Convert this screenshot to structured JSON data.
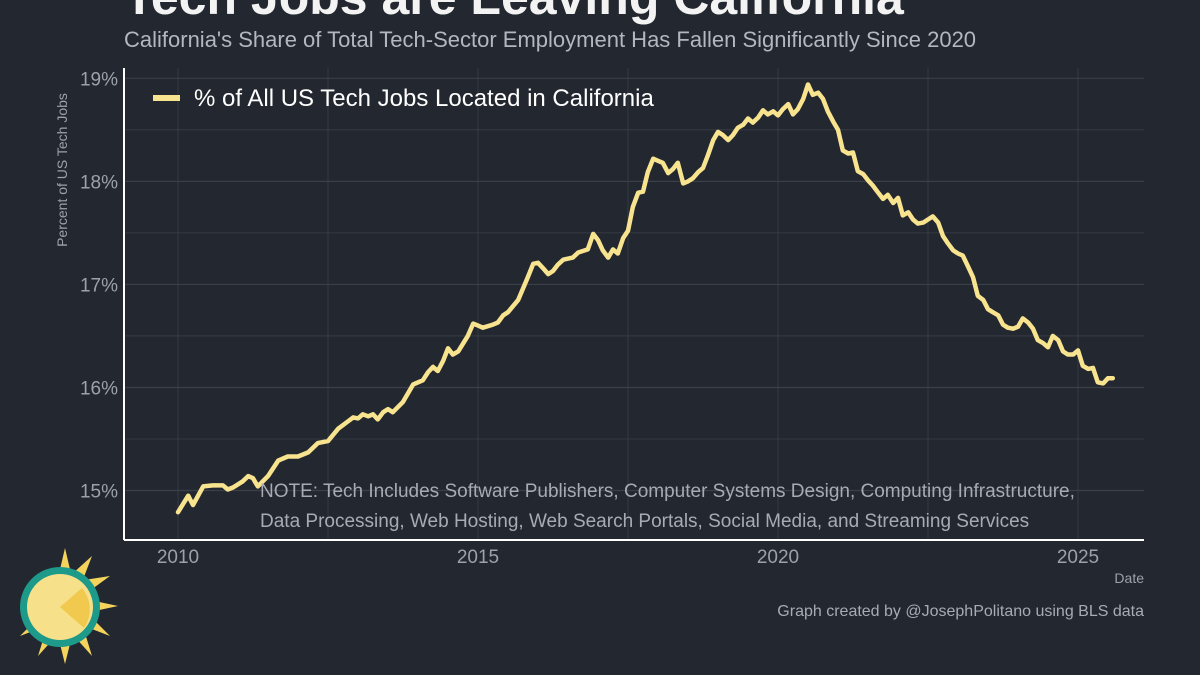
{
  "title": "Tech Jobs are Leaving California",
  "subtitle": "California's Share of Total Tech-Sector Employment Has Fallen Significantly Since 2020",
  "note": {
    "line1": "NOTE: Tech Includes Software Publishers, Computer Systems Design, Computing Infrastructure,",
    "line2": "Data Processing, Web Hosting, Web Search Portals, Social Media, and Streaming Services"
  },
  "credit": "Graph created by @JosephPolitano using BLS data",
  "logo_icon": "sun-icon",
  "colors": {
    "background": "#23272f",
    "line": "#f8e38f",
    "grid": "#3a3f48",
    "axis": "#ffffff"
  },
  "chart_data": {
    "type": "line",
    "xlabel": "Date",
    "ylabel": "Percent of US Tech Jobs",
    "xlim": [
      2009.1,
      2026.1
    ],
    "ylim": [
      14.52,
      19.1
    ],
    "x_ticks": [
      2010,
      2015,
      2020,
      2025
    ],
    "y_ticks": [
      15,
      16,
      17,
      18,
      19
    ],
    "y_tick_labels": [
      "15%",
      "16%",
      "17%",
      "18%",
      "19%"
    ],
    "grid": true,
    "legend_position": "top-left",
    "series": [
      {
        "name": "% of All US Tech Jobs Located in California",
        "color": "#f8e38f",
        "points": [
          [
            2010.0,
            14.79
          ],
          [
            2010.17,
            14.95
          ],
          [
            2010.25,
            14.86
          ],
          [
            2010.42,
            15.04
          ],
          [
            2010.58,
            15.05
          ],
          [
            2010.75,
            15.05
          ],
          [
            2010.83,
            15.01
          ],
          [
            2010.92,
            15.03
          ],
          [
            2011.08,
            15.09
          ],
          [
            2011.17,
            15.14
          ],
          [
            2011.25,
            15.12
          ],
          [
            2011.33,
            15.04
          ],
          [
            2011.5,
            15.14
          ],
          [
            2011.67,
            15.29
          ],
          [
            2011.83,
            15.33
          ],
          [
            2012.0,
            15.33
          ],
          [
            2012.17,
            15.37
          ],
          [
            2012.33,
            15.46
          ],
          [
            2012.5,
            15.48
          ],
          [
            2012.67,
            15.6
          ],
          [
            2012.83,
            15.67
          ],
          [
            2012.92,
            15.71
          ],
          [
            2013.0,
            15.7
          ],
          [
            2013.08,
            15.74
          ],
          [
            2013.17,
            15.72
          ],
          [
            2013.25,
            15.74
          ],
          [
            2013.33,
            15.69
          ],
          [
            2013.42,
            15.76
          ],
          [
            2013.5,
            15.79
          ],
          [
            2013.58,
            15.76
          ],
          [
            2013.75,
            15.86
          ],
          [
            2013.92,
            16.03
          ],
          [
            2014.08,
            16.07
          ],
          [
            2014.17,
            16.15
          ],
          [
            2014.25,
            16.2
          ],
          [
            2014.33,
            16.16
          ],
          [
            2014.42,
            16.26
          ],
          [
            2014.5,
            16.38
          ],
          [
            2014.58,
            16.32
          ],
          [
            2014.67,
            16.35
          ],
          [
            2014.83,
            16.5
          ],
          [
            2014.92,
            16.62
          ],
          [
            2015.0,
            16.6
          ],
          [
            2015.08,
            16.58
          ],
          [
            2015.25,
            16.61
          ],
          [
            2015.33,
            16.63
          ],
          [
            2015.42,
            16.7
          ],
          [
            2015.5,
            16.73
          ],
          [
            2015.67,
            16.85
          ],
          [
            2015.83,
            17.07
          ],
          [
            2015.92,
            17.2
          ],
          [
            2016.0,
            17.21
          ],
          [
            2016.08,
            17.16
          ],
          [
            2016.17,
            17.1
          ],
          [
            2016.25,
            17.13
          ],
          [
            2016.33,
            17.19
          ],
          [
            2016.42,
            17.24
          ],
          [
            2016.58,
            17.26
          ],
          [
            2016.67,
            17.31
          ],
          [
            2016.83,
            17.34
          ],
          [
            2016.92,
            17.49
          ],
          [
            2017.0,
            17.43
          ],
          [
            2017.08,
            17.33
          ],
          [
            2017.17,
            17.26
          ],
          [
            2017.25,
            17.34
          ],
          [
            2017.33,
            17.3
          ],
          [
            2017.42,
            17.45
          ],
          [
            2017.5,
            17.52
          ],
          [
            2017.58,
            17.75
          ],
          [
            2017.67,
            17.89
          ],
          [
            2017.75,
            17.9
          ],
          [
            2017.83,
            18.09
          ],
          [
            2017.92,
            18.22
          ],
          [
            2018.0,
            18.2
          ],
          [
            2018.08,
            18.18
          ],
          [
            2018.17,
            18.08
          ],
          [
            2018.25,
            18.12
          ],
          [
            2018.33,
            18.18
          ],
          [
            2018.42,
            17.98
          ],
          [
            2018.5,
            18.0
          ],
          [
            2018.58,
            18.03
          ],
          [
            2018.67,
            18.09
          ],
          [
            2018.75,
            18.13
          ],
          [
            2018.83,
            18.25
          ],
          [
            2018.92,
            18.4
          ],
          [
            2019.0,
            18.48
          ],
          [
            2019.08,
            18.45
          ],
          [
            2019.17,
            18.4
          ],
          [
            2019.25,
            18.45
          ],
          [
            2019.33,
            18.52
          ],
          [
            2019.42,
            18.55
          ],
          [
            2019.5,
            18.61
          ],
          [
            2019.58,
            18.57
          ],
          [
            2019.67,
            18.62
          ],
          [
            2019.75,
            18.69
          ],
          [
            2019.83,
            18.65
          ],
          [
            2019.92,
            18.68
          ],
          [
            2020.0,
            18.64
          ],
          [
            2020.08,
            18.7
          ],
          [
            2020.17,
            18.75
          ],
          [
            2020.25,
            18.65
          ],
          [
            2020.33,
            18.7
          ],
          [
            2020.42,
            18.8
          ],
          [
            2020.5,
            18.94
          ],
          [
            2020.58,
            18.84
          ],
          [
            2020.67,
            18.86
          ],
          [
            2020.75,
            18.8
          ],
          [
            2020.83,
            18.68
          ],
          [
            2020.92,
            18.58
          ],
          [
            2021.0,
            18.5
          ],
          [
            2021.08,
            18.3
          ],
          [
            2021.17,
            18.27
          ],
          [
            2021.25,
            18.28
          ],
          [
            2021.33,
            18.1
          ],
          [
            2021.42,
            18.07
          ],
          [
            2021.5,
            18.01
          ],
          [
            2021.58,
            17.96
          ],
          [
            2021.67,
            17.89
          ],
          [
            2021.75,
            17.83
          ],
          [
            2021.83,
            17.87
          ],
          [
            2021.92,
            17.79
          ],
          [
            2022.0,
            17.84
          ],
          [
            2022.08,
            17.67
          ],
          [
            2022.17,
            17.7
          ],
          [
            2022.25,
            17.63
          ],
          [
            2022.33,
            17.59
          ],
          [
            2022.42,
            17.6
          ],
          [
            2022.5,
            17.63
          ],
          [
            2022.58,
            17.66
          ],
          [
            2022.67,
            17.6
          ],
          [
            2022.75,
            17.47
          ],
          [
            2022.83,
            17.4
          ],
          [
            2022.92,
            17.33
          ],
          [
            2023.0,
            17.3
          ],
          [
            2023.08,
            17.28
          ],
          [
            2023.17,
            17.17
          ],
          [
            2023.25,
            17.07
          ],
          [
            2023.33,
            16.89
          ],
          [
            2023.42,
            16.85
          ],
          [
            2023.5,
            16.76
          ],
          [
            2023.58,
            16.73
          ],
          [
            2023.67,
            16.7
          ],
          [
            2023.75,
            16.61
          ],
          [
            2023.83,
            16.58
          ],
          [
            2023.92,
            16.57
          ],
          [
            2024.0,
            16.59
          ],
          [
            2024.08,
            16.67
          ],
          [
            2024.17,
            16.63
          ],
          [
            2024.25,
            16.57
          ],
          [
            2024.33,
            16.46
          ],
          [
            2024.42,
            16.43
          ],
          [
            2024.5,
            16.39
          ],
          [
            2024.58,
            16.5
          ],
          [
            2024.67,
            16.46
          ],
          [
            2024.75,
            16.35
          ],
          [
            2024.83,
            16.32
          ],
          [
            2024.92,
            16.32
          ],
          [
            2025.0,
            16.36
          ],
          [
            2025.08,
            16.21
          ],
          [
            2025.17,
            16.18
          ],
          [
            2025.25,
            16.19
          ],
          [
            2025.33,
            16.05
          ],
          [
            2025.42,
            16.04
          ],
          [
            2025.5,
            16.09
          ],
          [
            2025.58,
            16.09
          ]
        ]
      }
    ]
  }
}
